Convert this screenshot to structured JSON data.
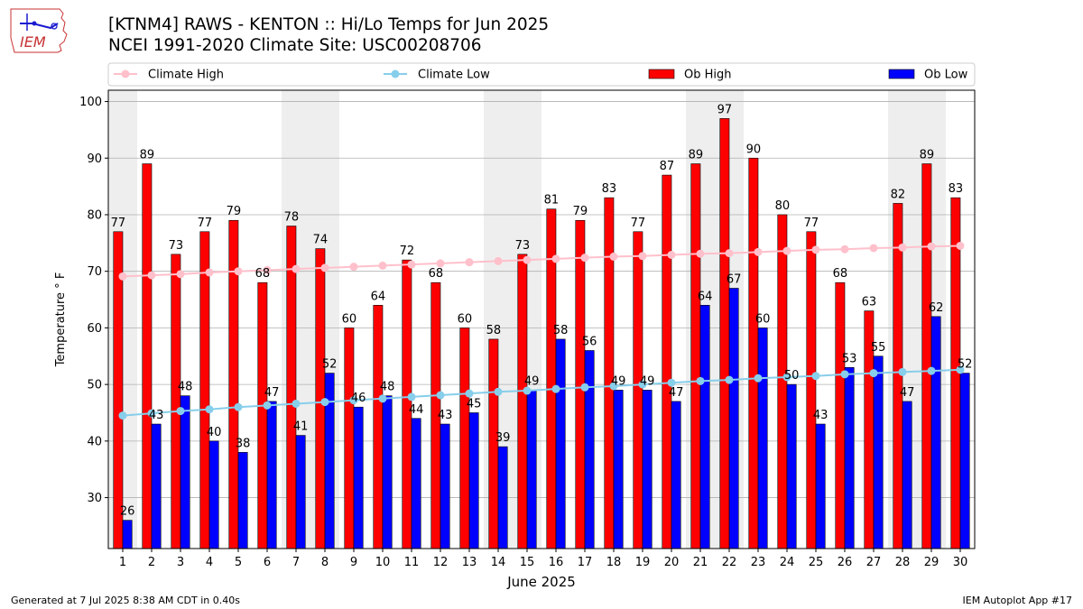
{
  "header": {
    "title_line1": "[KTNM4] RAWS - KENTON :: Hi/Lo Temps for Jun 2025",
    "title_line2": "NCEI 1991-2020 Climate Site: USC00208706",
    "logo_text": "IEM"
  },
  "footer": {
    "generated": "Generated at 7 Jul 2025 8:38 AM CDT in 0.40s",
    "app": "IEM Autoplot App #17"
  },
  "colors": {
    "ob_high": "#ff0000",
    "ob_low": "#0000ff",
    "climate_high": "#ffc0cb",
    "climate_low": "#87ceeb",
    "weekend_shade": "#eeeeee",
    "grid": "#b0b0b0"
  },
  "chart_data": {
    "type": "bar",
    "xlabel": "June 2025",
    "ylabel": "Temperature ° F",
    "ylim": [
      21,
      102
    ],
    "yticks": [
      30,
      40,
      50,
      60,
      70,
      80,
      90,
      100
    ],
    "grid": "horizontal",
    "legend_placement": "top",
    "categories": [
      "1",
      "2",
      "3",
      "4",
      "5",
      "6",
      "7",
      "8",
      "9",
      "10",
      "11",
      "12",
      "13",
      "14",
      "15",
      "16",
      "17",
      "18",
      "19",
      "20",
      "21",
      "22",
      "23",
      "24",
      "25",
      "26",
      "27",
      "28",
      "29",
      "30"
    ],
    "shaded_days": [
      1,
      7,
      8,
      14,
      15,
      21,
      22,
      28,
      29
    ],
    "series": [
      {
        "name": "Climate High",
        "kind": "line",
        "values": [
          69.1,
          69.3,
          69.5,
          69.8,
          70.0,
          70.2,
          70.4,
          70.6,
          70.8,
          71.0,
          71.2,
          71.4,
          71.6,
          71.8,
          72.0,
          72.2,
          72.4,
          72.6,
          72.7,
          72.9,
          73.1,
          73.2,
          73.4,
          73.6,
          73.8,
          73.9,
          74.1,
          74.2,
          74.4,
          74.5
        ]
      },
      {
        "name": "Climate Low",
        "kind": "line",
        "values": [
          44.5,
          44.9,
          45.3,
          45.6,
          46.0,
          46.3,
          46.6,
          46.9,
          47.2,
          47.5,
          47.8,
          48.1,
          48.4,
          48.7,
          48.9,
          49.2,
          49.5,
          49.7,
          50.0,
          50.3,
          50.6,
          50.8,
          51.1,
          51.3,
          51.5,
          51.8,
          52.0,
          52.2,
          52.4,
          52.6
        ]
      },
      {
        "name": "Ob High",
        "kind": "bar",
        "values": [
          77,
          89,
          73,
          77,
          79,
          68,
          78,
          74,
          60,
          64,
          72,
          68,
          60,
          58,
          73,
          81,
          79,
          83,
          77,
          87,
          89,
          97,
          90,
          80,
          77,
          68,
          63,
          82,
          89,
          83
        ]
      },
      {
        "name": "Ob Low",
        "kind": "bar",
        "values": [
          26,
          43,
          48,
          40,
          38,
          47,
          41,
          52,
          46,
          48,
          44,
          43,
          45,
          39,
          49,
          58,
          56,
          49,
          49,
          47,
          64,
          67,
          60,
          50,
          43,
          53,
          55,
          47,
          62,
          52
        ]
      }
    ]
  }
}
